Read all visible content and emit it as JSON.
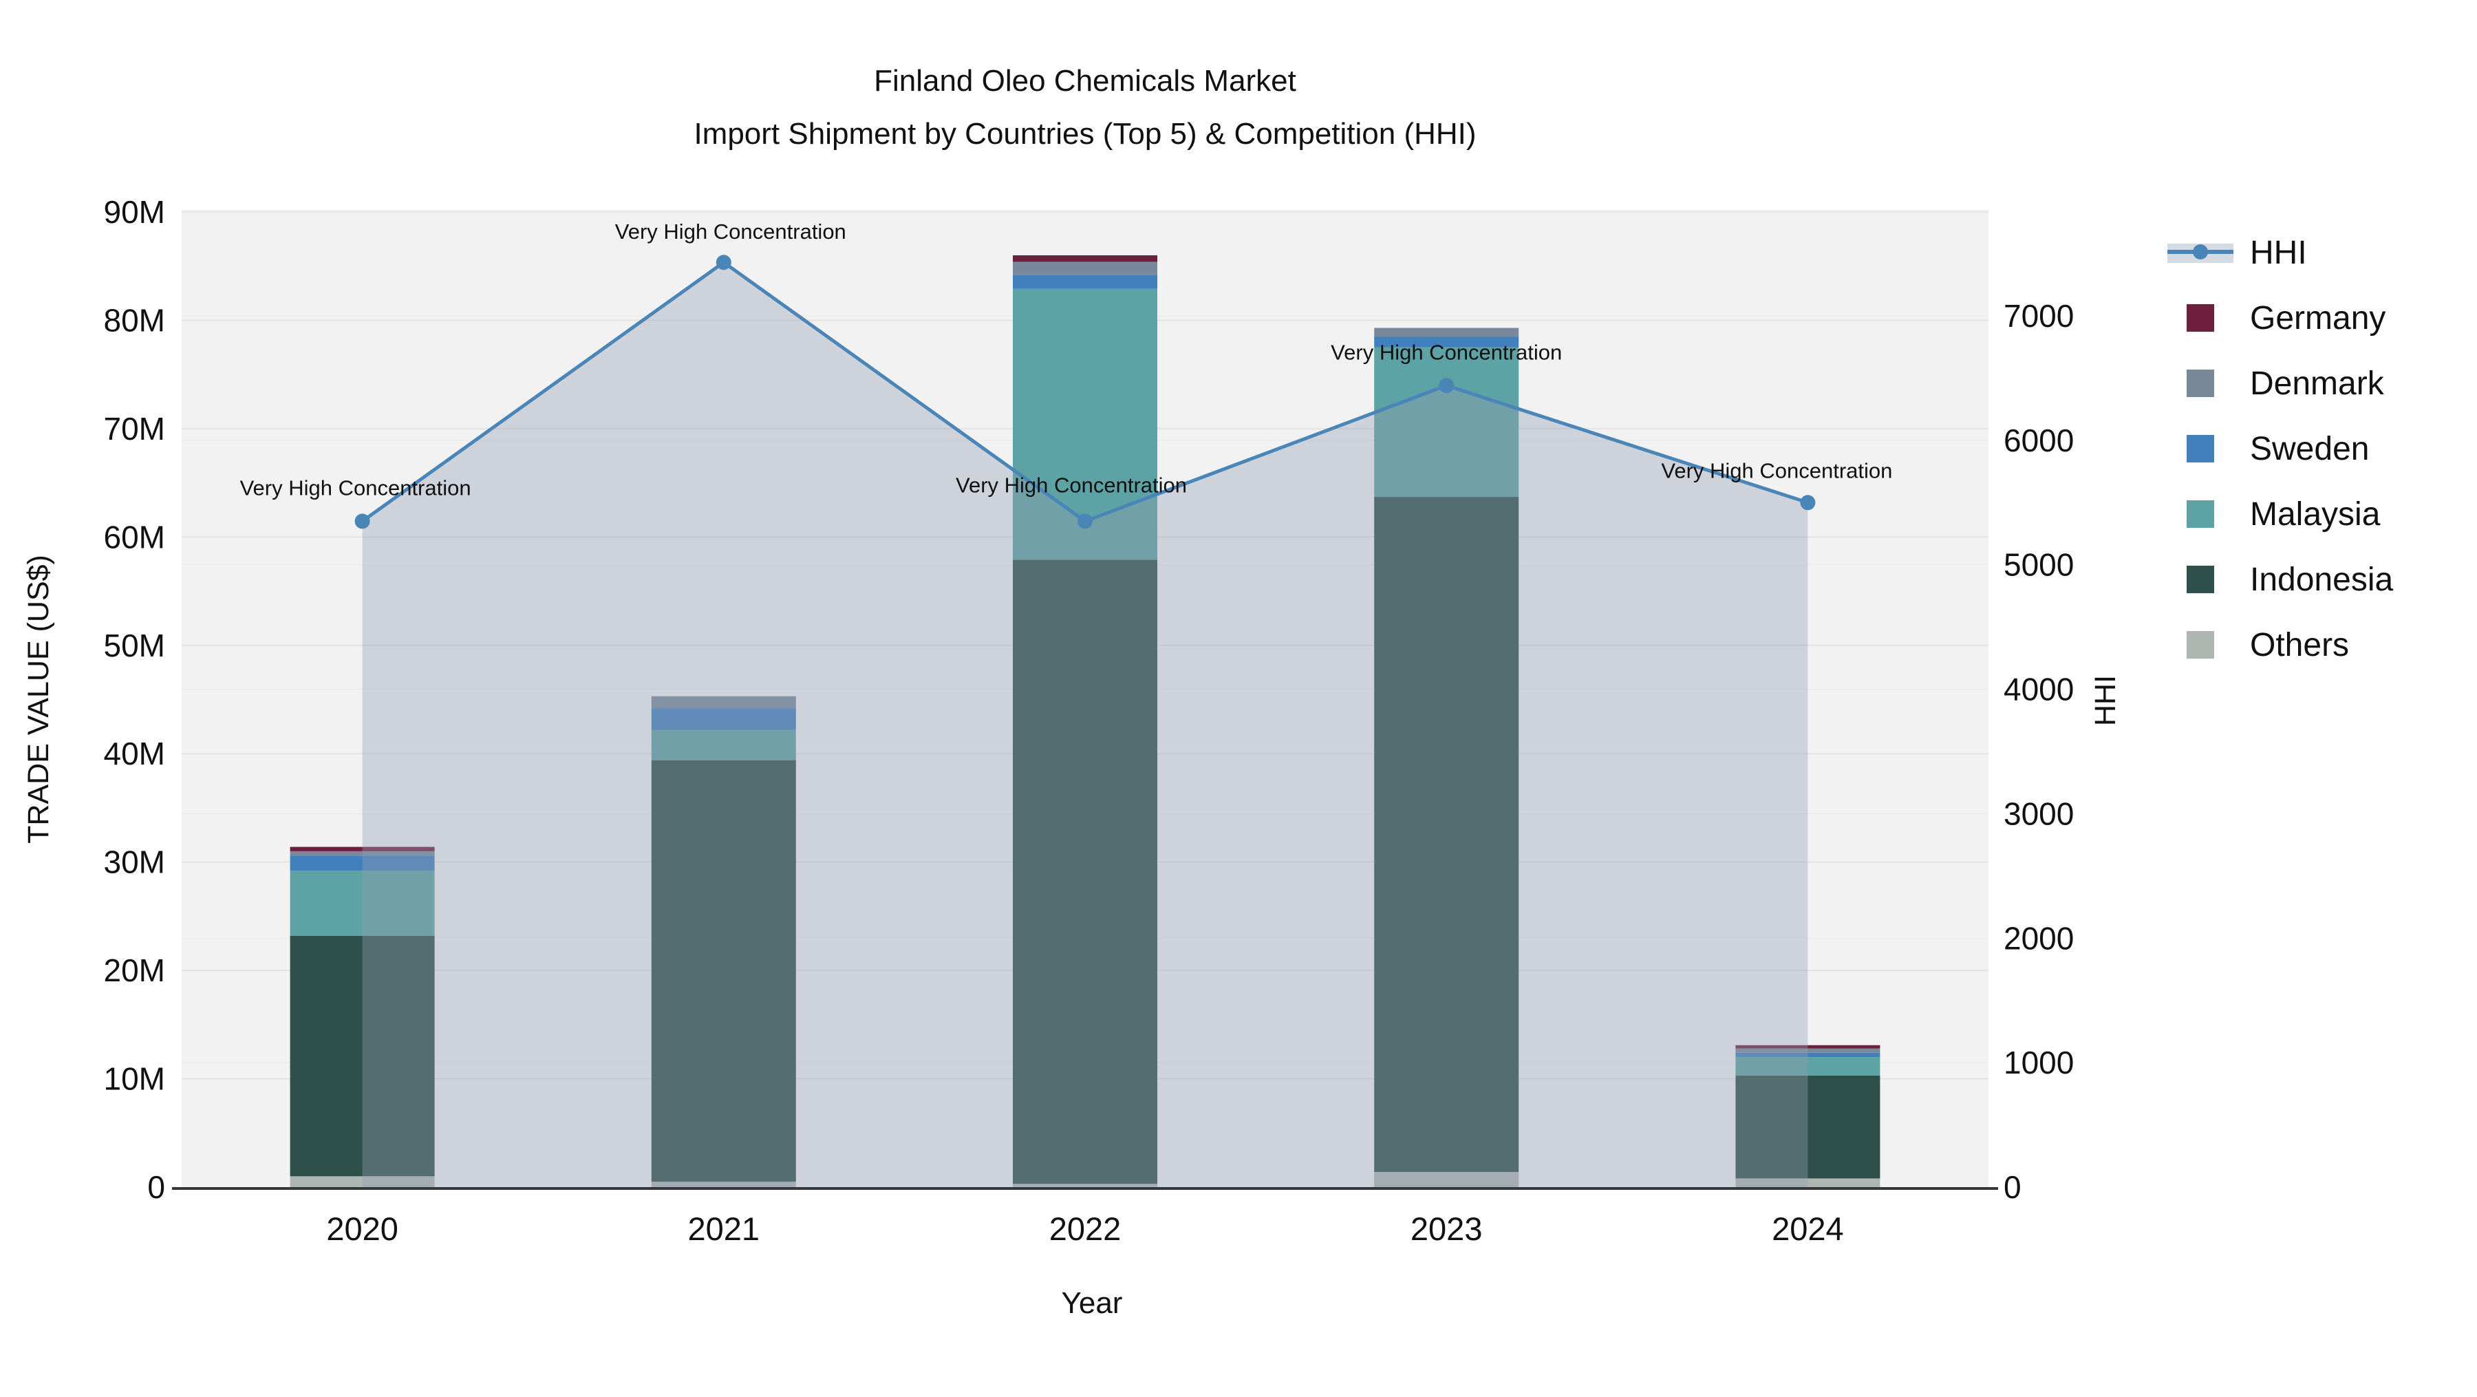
{
  "page": {
    "title_line1": "Finland Oleo Chemicals Market",
    "title_line2": "Import Shipment by Countries (Top 5) & Competition (HHI)"
  },
  "chart_data": {
    "type": "combo-stacked-bar-line",
    "x": [
      "2020",
      "2021",
      "2022",
      "2023",
      "2024"
    ],
    "xlabel": "Year",
    "ylabel_left": "TRADE VALUE (US$)",
    "ylabel_right": "HHI",
    "bar_unit": "millions USD",
    "series": [
      {
        "name": "Others",
        "color": "#aeb6b2",
        "values": [
          1.0,
          0.5,
          0.3,
          1.4,
          0.8
        ]
      },
      {
        "name": "Indonesia",
        "color": "#2e4f4a",
        "values": [
          22.2,
          38.9,
          57.6,
          62.3,
          9.5
        ]
      },
      {
        "name": "Malaysia",
        "color": "#5da2a4",
        "values": [
          6.0,
          2.8,
          25.0,
          13.8,
          1.7
        ]
      },
      {
        "name": "Sweden",
        "color": "#4280bd",
        "values": [
          1.4,
          2.0,
          1.3,
          1.0,
          0.4
        ]
      },
      {
        "name": "Denmark",
        "color": "#78899c",
        "values": [
          0.4,
          1.1,
          1.2,
          0.8,
          0.4
        ]
      },
      {
        "name": "Germany",
        "color": "#6f1f3e",
        "values": [
          0.4,
          0.0,
          0.6,
          0.0,
          0.3
        ]
      }
    ],
    "line": {
      "name": "HHI",
      "color": "#4a85b8",
      "fill_color": "rgba(146,158,178,0.38)",
      "values": [
        5350,
        7430,
        5350,
        6440,
        5500
      ]
    },
    "annotations": [
      {
        "x": "2020",
        "text": "Very High Concentration",
        "ax": -10,
        "ay": -38
      },
      {
        "x": "2021",
        "text": "Very High Concentration",
        "ax": 10,
        "ay": -34
      },
      {
        "x": "2022",
        "text": "Very High Concentration",
        "ax": -20,
        "ay": -42
      },
      {
        "x": "2023",
        "text": "Very High Concentration",
        "ax": 0,
        "ay": -38
      },
      {
        "x": "2024",
        "text": "Very High Concentration",
        "ax": -45,
        "ay": -36
      }
    ],
    "axes": {
      "left": {
        "min": 0,
        "max": 90,
        "ticks": [
          "0",
          "10M",
          "20M",
          "30M",
          "40M",
          "50M",
          "60M",
          "70M",
          "80M",
          "90M"
        ]
      },
      "right": {
        "min": 0,
        "max": 7835,
        "ticks": [
          "0",
          "1000",
          "2000",
          "3000",
          "4000",
          "5000",
          "6000",
          "7000"
        ]
      }
    },
    "legend": {
      "position": "right",
      "items": [
        "HHI",
        "Germany",
        "Denmark",
        "Sweden",
        "Malaysia",
        "Indonesia",
        "Others"
      ]
    }
  }
}
